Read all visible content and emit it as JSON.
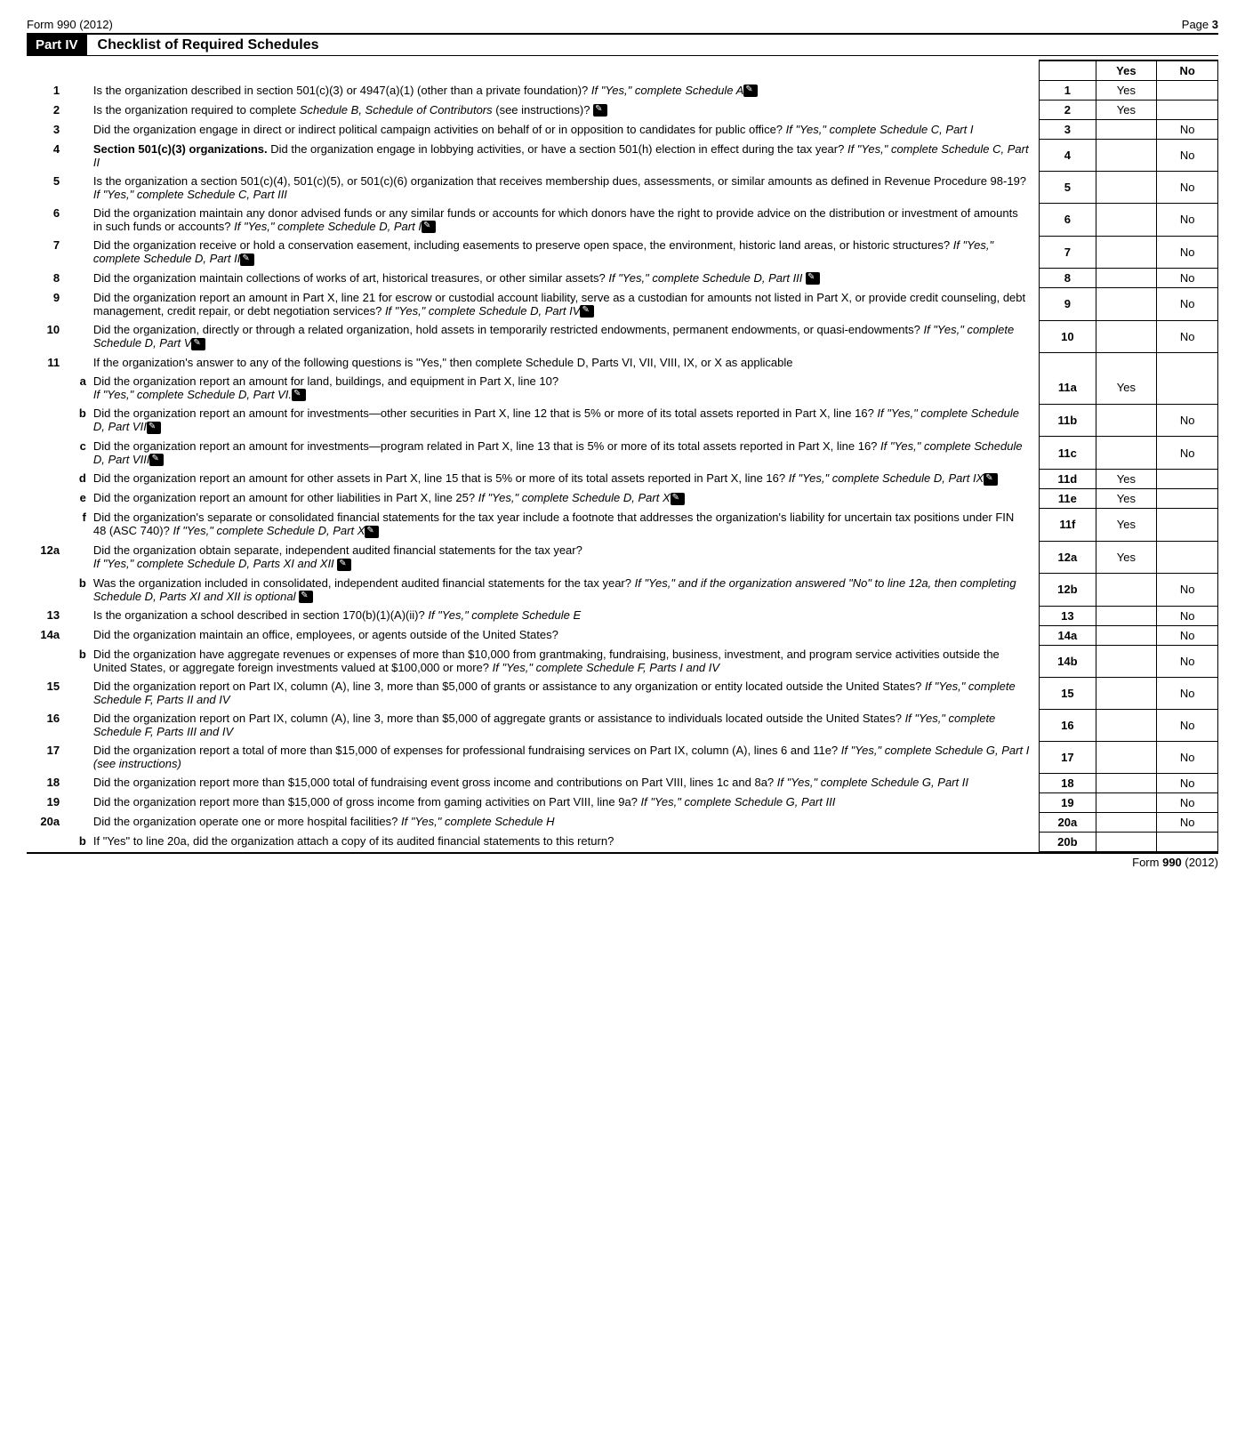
{
  "header": {
    "form_left": "Form 990 (2012)",
    "page_right": "Page 3"
  },
  "part": {
    "badge": "Part IV",
    "title": "Checklist of Required Schedules"
  },
  "col_headers": {
    "yes": "Yes",
    "no": "No"
  },
  "rows": [
    {
      "num": "1",
      "sub": "",
      "text": "Is the organization described in section 501(c)(3) or 4947(a)(1) (other than a private foundation)? <span class='italic'>If \"Yes,\" complete Schedule A</span><span class='icon' data-name='edit-icon' data-interactable='false'></span>",
      "line": "1",
      "yes": "Yes",
      "no": ""
    },
    {
      "num": "2",
      "sub": "",
      "text": "Is the organization required to complete <span class='italic'>Schedule B, Schedule of Contributors</span> (see instructions)? <span class='icon' data-name='edit-icon' data-interactable='false'></span>",
      "line": "2",
      "yes": "Yes",
      "no": ""
    },
    {
      "num": "3",
      "sub": "",
      "text": "Did the organization engage in direct or indirect political campaign activities on behalf of or in opposition to candidates for public office? <span class='italic'>If \"Yes,\" complete Schedule C, Part I</span>",
      "line": "3",
      "yes": "",
      "no": "No"
    },
    {
      "num": "4",
      "sub": "",
      "text": "<span class='bold'>Section 501(c)(3) organizations.</span> Did the organization engage in lobbying activities, or have a section 501(h) election in effect during the tax year? <span class='italic'>If \"Yes,\" complete Schedule C, Part II</span>",
      "line": "4",
      "yes": "",
      "no": "No"
    },
    {
      "num": "5",
      "sub": "",
      "text": "Is the organization a section 501(c)(4), 501(c)(5), or 501(c)(6) organization that receives membership dues, assessments, or similar amounts as defined in Revenue Procedure 98-19? <span class='italic'>If \"Yes,\" complete Schedule C, Part III</span>",
      "line": "5",
      "yes": "",
      "no": "No"
    },
    {
      "num": "6",
      "sub": "",
      "text": "Did the organization maintain any donor advised funds or any similar funds or accounts for which donors have the right to provide advice on the distribution or investment of amounts in such funds or accounts? <span class='italic'>If \"Yes,\" complete Schedule D, Part I</span><span class='icon' data-name='edit-icon' data-interactable='false'></span>",
      "line": "6",
      "yes": "",
      "no": "No"
    },
    {
      "num": "7",
      "sub": "",
      "text": "Did the organization receive or hold a conservation easement, including easements to preserve open space, the environment, historic land areas, or historic structures? <span class='italic'>If \"Yes,\" complete Schedule D, Part II</span><span class='icon' data-name='edit-icon' data-interactable='false'></span>",
      "line": "7",
      "yes": "",
      "no": "No"
    },
    {
      "num": "8",
      "sub": "",
      "text": "Did the organization maintain collections of works of art, historical treasures, or other similar assets? <span class='italic'>If \"Yes,\" complete Schedule D, Part III</span> <span class='icon' data-name='edit-icon' data-interactable='false'></span>",
      "line": "8",
      "yes": "",
      "no": "No"
    },
    {
      "num": "9",
      "sub": "",
      "text": "Did the organization report an amount in Part X, line 21 for escrow or custodial account liability, serve as a custodian for amounts not listed in Part X, or provide credit counseling, debt management, credit repair, or debt negotiation services? <span class='italic'>If \"Yes,\" complete Schedule D, Part IV</span><span class='icon' data-name='edit-icon' data-interactable='false'></span>",
      "line": "9",
      "yes": "",
      "no": "No"
    },
    {
      "num": "10",
      "sub": "",
      "text": "Did the organization, directly or through a related organization, hold assets in temporarily restricted endowments, permanent endowments, or quasi-endowments? <span class='italic'>If \"Yes,\" complete Schedule D, Part V</span><span class='icon' data-name='edit-icon' data-interactable='false'></span>",
      "line": "10",
      "yes": "",
      "no": "No"
    },
    {
      "num": "11",
      "sub": "",
      "text": "If the organization's answer to any of the following questions is \"Yes,\" then complete Schedule D, Parts VI, VII, VIII, IX, or X as applicable",
      "line": "",
      "yes": "",
      "no": "",
      "noans": true
    },
    {
      "num": "",
      "sub": "a",
      "text": "Did the organization report an amount for land, buildings, and equipment in Part X, line 10?<br><span class='italic'>If \"Yes,\" complete Schedule D, Part VI.</span><span class='icon' data-name='edit-icon' data-interactable='false'></span>",
      "line": "11a",
      "yes": "Yes",
      "no": ""
    },
    {
      "num": "",
      "sub": "b",
      "text": "Did the organization report an amount for investments—other securities in Part X, line 12 that is 5% or more of its total assets reported in Part X, line 16? <span class='italic'>If \"Yes,\" complete Schedule D, Part VII</span><span class='icon' data-name='edit-icon' data-interactable='false'></span>",
      "line": "11b",
      "yes": "",
      "no": "No"
    },
    {
      "num": "",
      "sub": "c",
      "text": "Did the organization report an amount for investments—program related in Part X, line 13 that is 5% or more of its total assets reported in Part X, line 16? <span class='italic'>If \"Yes,\" complete Schedule D, Part VIII</span><span class='icon' data-name='edit-icon' data-interactable='false'></span>",
      "line": "11c",
      "yes": "",
      "no": "No"
    },
    {
      "num": "",
      "sub": "d",
      "text": "Did the organization report an amount for other assets in Part X, line 15 that is 5% or more of its total assets reported in Part X, line 16? <span class='italic'>If \"Yes,\" complete Schedule D, Part IX</span><span class='icon' data-name='edit-icon' data-interactable='false'></span>",
      "line": "11d",
      "yes": "Yes",
      "no": ""
    },
    {
      "num": "",
      "sub": "e",
      "text": "Did the organization report an amount for other liabilities in Part X, line 25? <span class='italic'>If \"Yes,\" complete Schedule D, Part X</span><span class='icon' data-name='edit-icon' data-interactable='false'></span>",
      "line": "11e",
      "yes": "Yes",
      "no": ""
    },
    {
      "num": "",
      "sub": "f",
      "text": "Did the organization's separate or consolidated financial statements for the tax year include a footnote that addresses the organization's liability for uncertain tax positions under FIN 48 (ASC 740)? <span class='italic'>If \"Yes,\" complete Schedule D, Part X</span><span class='icon' data-name='edit-icon' data-interactable='false'></span>",
      "line": "11f",
      "yes": "Yes",
      "no": ""
    },
    {
      "num": "12a",
      "sub": "",
      "text": "Did the organization obtain separate, independent audited financial statements for the tax year?<br><span class='italic'>If \"Yes,\" complete Schedule D, Parts XI and XII</span> <span class='icon' data-name='edit-icon' data-interactable='false'></span>",
      "line": "12a",
      "yes": "Yes",
      "no": ""
    },
    {
      "num": "",
      "sub": "b",
      "text": "Was the organization included in consolidated, independent audited financial statements for the tax year? <span class='italic'>If \"Yes,\" and if the organization answered \"No\" to line 12a, then completing Schedule D, Parts XI and XII is optional</span> <span class='icon' data-name='edit-icon' data-interactable='false'></span>",
      "line": "12b",
      "yes": "",
      "no": "No"
    },
    {
      "num": "13",
      "sub": "",
      "text": "Is the organization a school described in section 170(b)(1)(A)(ii)? <span class='italic'>If \"Yes,\" complete Schedule E</span>",
      "line": "13",
      "yes": "",
      "no": "No"
    },
    {
      "num": "14a",
      "sub": "",
      "text": "Did the organization maintain an office, employees, or agents outside of the United States?",
      "line": "14a",
      "yes": "",
      "no": "No"
    },
    {
      "num": "",
      "sub": "b",
      "text": "Did the organization have aggregate revenues or expenses of more than $10,000 from grantmaking, fundraising, business, investment, and program service activities outside the United States, or aggregate foreign investments valued at $100,000 or more? <span class='italic'>If \"Yes,\" complete Schedule F, Parts I and IV</span>",
      "line": "14b",
      "yes": "",
      "no": "No"
    },
    {
      "num": "15",
      "sub": "",
      "text": "Did the organization report on Part IX, column (A), line 3, more than $5,000 of grants or assistance to any organization or entity located outside the United States? <span class='italic'>If \"Yes,\" complete Schedule F, Parts II and IV</span>",
      "line": "15",
      "yes": "",
      "no": "No"
    },
    {
      "num": "16",
      "sub": "",
      "text": "Did the organization report on Part IX, column (A), line 3, more than $5,000 of aggregate grants or assistance to individuals located outside the United States? <span class='italic'>If \"Yes,\" complete Schedule F, Parts III and IV</span>",
      "line": "16",
      "yes": "",
      "no": "No"
    },
    {
      "num": "17",
      "sub": "",
      "text": "Did the organization report a total of more than $15,000 of expenses for professional fundraising services on Part IX, column (A), lines 6 and 11e? <span class='italic'>If \"Yes,\" complete Schedule G, Part I (see instructions)</span>",
      "line": "17",
      "yes": "",
      "no": "No"
    },
    {
      "num": "18",
      "sub": "",
      "text": "Did the organization report more than $15,000 total of fundraising event gross income and contributions on Part VIII, lines 1c and 8a? <span class='italic'>If \"Yes,\" complete Schedule G, Part II</span>",
      "line": "18",
      "yes": "",
      "no": "No"
    },
    {
      "num": "19",
      "sub": "",
      "text": "Did the organization report more than $15,000 of gross income from gaming activities on Part VIII, line 9a? <span class='italic'>If \"Yes,\" complete Schedule G, Part III</span>",
      "line": "19",
      "yes": "",
      "no": "No"
    },
    {
      "num": "20a",
      "sub": "",
      "text": "Did the organization operate one or more hospital facilities? <span class='italic'>If \"Yes,\" complete Schedule H</span>",
      "line": "20a",
      "yes": "",
      "no": "No"
    },
    {
      "num": "",
      "sub": "b",
      "text": "If \"Yes\" to line 20a, did the organization attach a copy of its audited financial statements to this return?",
      "line": "20b",
      "yes": "",
      "no": ""
    }
  ],
  "footer": {
    "form": "Form 990 (2012)",
    "form_bold": "990"
  }
}
